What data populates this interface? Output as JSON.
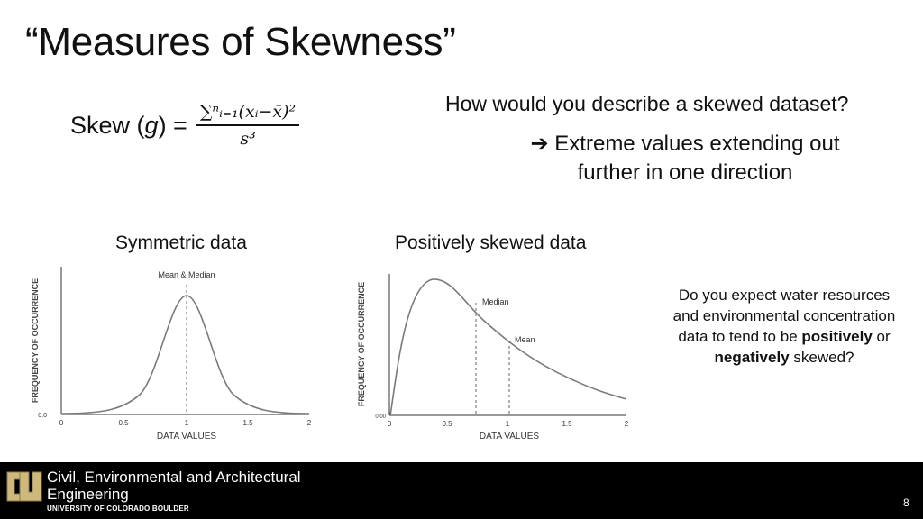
{
  "title": "“Measures of Skewness”",
  "formula": {
    "lhs_prefix": "Skew (",
    "lhs_var": "g",
    "lhs_suffix": ") =",
    "numerator": "∑ⁿᵢ₌₁(xᵢ−x̄)²",
    "denominator": "s³"
  },
  "question": "How would you describe a skewed dataset?",
  "answer": {
    "arrow": "➔",
    "line1": "Extreme values extending out",
    "line2": "further in one direction"
  },
  "symmetric": {
    "label": "Symmetric data",
    "annotation": "Mean & Median",
    "ylabel": "FREQUENCY OF OCCURRENCE",
    "xlabel": "DATA VALUES",
    "ytick": "0.0",
    "xticks": [
      "0",
      "0.5",
      "1",
      "1.5",
      "2"
    ]
  },
  "skewed": {
    "label": "Positively skewed data",
    "median_label": "Median",
    "mean_label": "Mean",
    "ylabel": "FREQUENCY OF OCCURRENCE",
    "xlabel": "DATA VALUES",
    "ytick": "0.00",
    "xticks": [
      "0",
      "0.5",
      "1",
      "1.5",
      "2"
    ]
  },
  "side_question": {
    "line1": "Do you expect water resources and environmental concentration data to tend to be",
    "bold1": "positively",
    "mid": "or",
    "bold2": "negatively",
    "end": "skewed?"
  },
  "footer": {
    "dept_line1": "Civil, Environmental and Architectural",
    "dept_line2": "Engineering",
    "university": "UNIVERSITY OF COLORADO BOULDER",
    "page_number": "8",
    "logo_icon": "cu-logo-icon"
  },
  "colors": {
    "footer_bg": "#000000",
    "curve": "#7a7a7a",
    "logo_gold": "#cfb87c"
  }
}
